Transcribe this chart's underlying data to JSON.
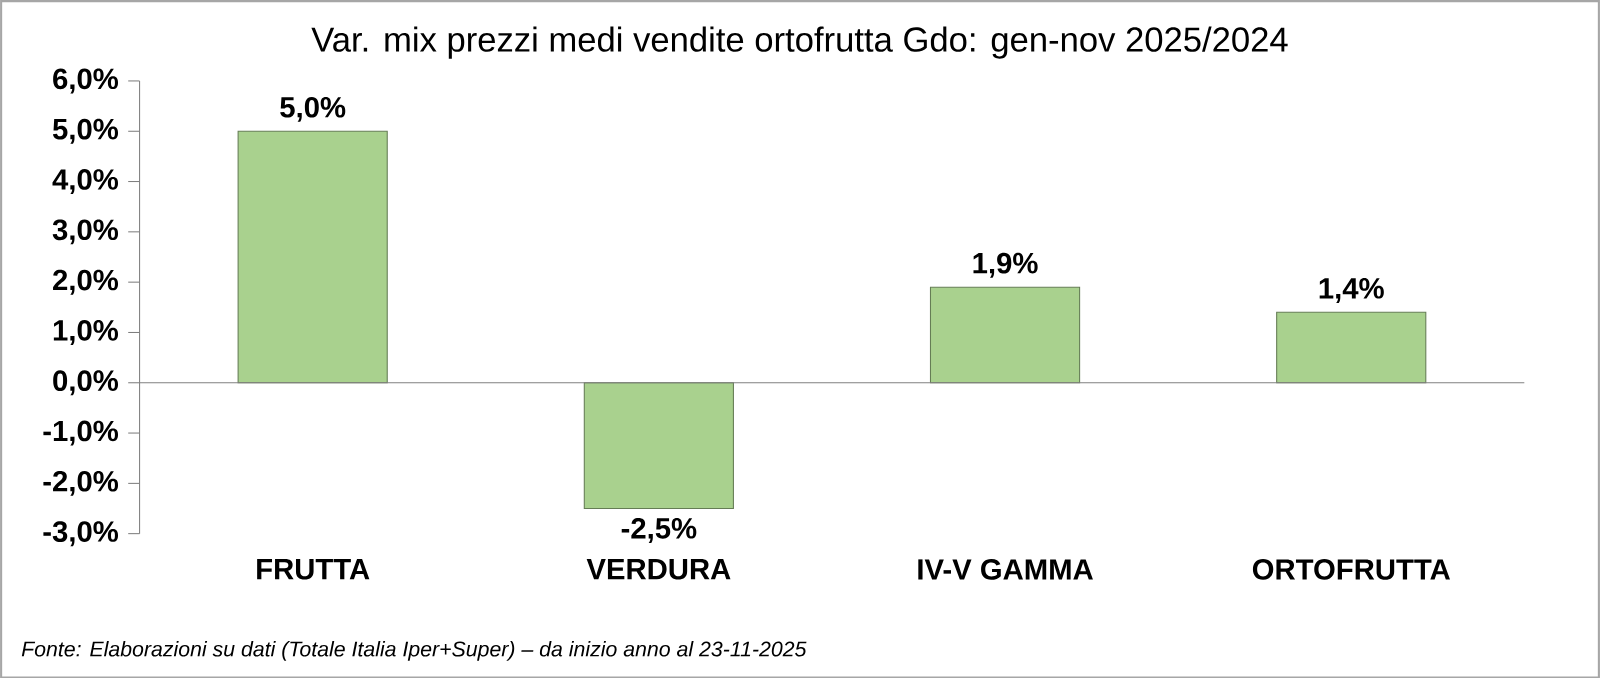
{
  "chart_data": {
    "type": "bar",
    "title": "Var. mix prezzi medi vendite ortofrutta Gdo: gen-nov 2025/2024",
    "categories": [
      "FRUTTA",
      "VERDURA",
      "IV-V GAMMA",
      "ORTOFRUTTA"
    ],
    "values": [
      5.0,
      -2.5,
      1.9,
      1.4
    ],
    "value_labels": [
      "5,0%",
      "-2,5%",
      "1,9%",
      "1,4%"
    ],
    "color": "#a9d18e",
    "ylim": [
      -3,
      6
    ],
    "yticks": [
      {
        "value": -3,
        "label": "-3,0%"
      },
      {
        "value": -2,
        "label": "-2,0%"
      },
      {
        "value": -1,
        "label": "-1,0%"
      },
      {
        "value": 0,
        "label": "0,0%"
      },
      {
        "value": 1,
        "label": "1,0%"
      },
      {
        "value": 2,
        "label": "2,0%"
      },
      {
        "value": 3,
        "label": "3,0%"
      },
      {
        "value": 4,
        "label": "4,0%"
      },
      {
        "value": 5,
        "label": "5,0%"
      },
      {
        "value": 6,
        "label": "6,0%"
      }
    ],
    "annotations": [
      "Fonte: Elaborazioni su dati (Totale Italia Iper+Super) – da inizio anno al 23-11-2025"
    ]
  }
}
